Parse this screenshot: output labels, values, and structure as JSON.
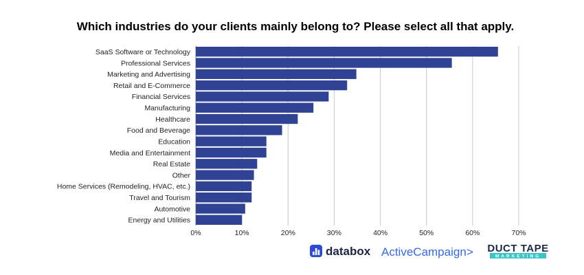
{
  "chart_data": {
    "type": "bar",
    "orientation": "horizontal",
    "title": "Which industries do your clients mainly belong to? Please select all that apply.",
    "categories": [
      "SaaS Software or Technology",
      "Professional Services",
      "Marketing and Advertising",
      "Retail and E-Commerce",
      "Financial Services",
      "Manufacturing",
      "Healthcare",
      "Food and Beverage",
      "Education",
      "Media and Entertainment",
      "Real Estate",
      "Other",
      "Home Services (Remodeling, HVAC, etc.)",
      "Travel and Tourism",
      "Automotive",
      "Energy and Utilities"
    ],
    "values": [
      65.5,
      55.5,
      34.8,
      32.8,
      28.8,
      25.5,
      22.1,
      18.7,
      15.3,
      15.3,
      13.3,
      12.6,
      12.1,
      12.1,
      10.7,
      10.0
    ],
    "xlim": [
      0,
      70
    ],
    "x_ticks": [
      "0%",
      "10%",
      "20%",
      "30%",
      "40%",
      "50%",
      "60%",
      "70%"
    ],
    "grid": true,
    "bar_color": "#2f4294",
    "grid_color": "#c8c8c8"
  },
  "logos": {
    "databox": {
      "name": "databox",
      "icon": "databox-bars-icon",
      "color": "#2d4bd9",
      "text_color": "#1c2340"
    },
    "activecampaign": {
      "name": "ActiveCampaign",
      "arrow": ">",
      "color": "#356ae6"
    },
    "ducttape": {
      "line1": "DUCT TAPE",
      "line2": "MARKETING",
      "color": "#1b2a4a",
      "accent": "#3cc4c8"
    }
  }
}
